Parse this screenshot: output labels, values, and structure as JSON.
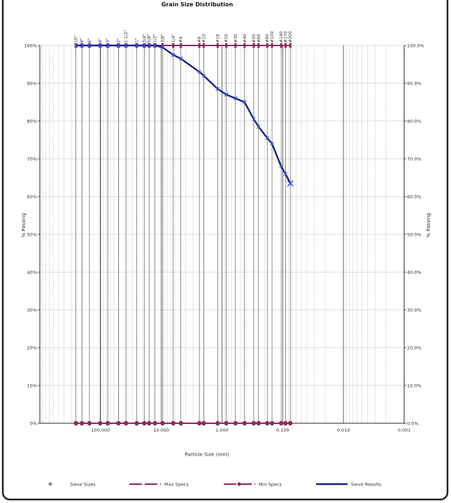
{
  "chart_data": {
    "type": "line",
    "title": "Grain Size Distribution",
    "xlabel": "Particle Size (mm)",
    "ylabel": "% Passing",
    "x_scale": "log",
    "x_reversed": true,
    "xlim": [
      1000,
      0.001
    ],
    "ylim": [
      0,
      100
    ],
    "x_ticks": [
      {
        "value": 100,
        "label": "100.000"
      },
      {
        "value": 10,
        "label": "10.000"
      },
      {
        "value": 1,
        "label": "1.000"
      },
      {
        "value": 0.1,
        "label": "0.100"
      },
      {
        "value": 0.01,
        "label": "0.010"
      },
      {
        "value": 0.001,
        "label": "0.001"
      }
    ],
    "y_ticks_left": [
      "0%",
      "10%",
      "20%",
      "30%",
      "40%",
      "50%",
      "60%",
      "70%",
      "80%",
      "90%",
      "100%"
    ],
    "y_ticks_right": [
      "0.0%",
      "10.0%",
      "20.0%",
      "30.0%",
      "40.0%",
      "50.0%",
      "60.0%",
      "70.0%",
      "80.0%",
      "90.0%",
      "100.0%"
    ],
    "sieve_sizes": [
      {
        "label": "10\"",
        "mm": 254
      },
      {
        "label": "8\"",
        "mm": 203.2
      },
      {
        "label": "6\"",
        "mm": 152.4
      },
      {
        "label": "4\"",
        "mm": 101.6
      },
      {
        "label": "3\"",
        "mm": 76.2
      },
      {
        "label": "2\"",
        "mm": 50.8
      },
      {
        "label": "1 1/2\"",
        "mm": 38.1
      },
      {
        "label": "1\"",
        "mm": 25.4
      },
      {
        "label": "3/4\"",
        "mm": 19.05
      },
      {
        "label": "5/8\"",
        "mm": 15.875
      },
      {
        "label": "1/2\"",
        "mm": 12.7
      },
      {
        "label": "3/8\"",
        "mm": 9.525
      },
      {
        "label": "1/4\"",
        "mm": 6.35
      },
      {
        "label": "#4",
        "mm": 4.75
      },
      {
        "label": "#8",
        "mm": 2.36
      },
      {
        "label": "#10",
        "mm": 2.0
      },
      {
        "label": "#16",
        "mm": 1.18
      },
      {
        "label": "#20",
        "mm": 0.85
      },
      {
        "label": "#30",
        "mm": 0.6
      },
      {
        "label": "#40",
        "mm": 0.425
      },
      {
        "label": "#50",
        "mm": 0.3
      },
      {
        "label": "#60",
        "mm": 0.25
      },
      {
        "label": "#80",
        "mm": 0.18
      },
      {
        "label": "#100",
        "mm": 0.15
      },
      {
        "label": "#140",
        "mm": 0.106
      },
      {
        "label": "#170",
        "mm": 0.09
      },
      {
        "label": "#200",
        "mm": 0.075
      }
    ],
    "series": [
      {
        "name": "Sieve Results",
        "color": "#1a1f7a",
        "x": [
          254,
          203.2,
          152.4,
          101.6,
          76.2,
          50.8,
          38.1,
          25.4,
          19.05,
          15.875,
          12.7,
          9.525,
          6.35,
          4.75,
          2.36,
          2.0,
          1.18,
          0.85,
          0.6,
          0.425,
          0.3,
          0.25,
          0.18,
          0.15,
          0.106,
          0.09,
          0.075
        ],
        "y": [
          100,
          100,
          100,
          100,
          100,
          100,
          100,
          100,
          100,
          100,
          100,
          99.5,
          97.5,
          96.5,
          93,
          92,
          88.5,
          87,
          86,
          85,
          80.5,
          78.5,
          75.5,
          74,
          68,
          66,
          63.5
        ]
      },
      {
        "name": "Max Specs",
        "color": "#8b2a5c",
        "x": [
          254,
          203.2,
          152.4,
          101.6,
          76.2,
          50.8,
          38.1,
          25.4,
          19.05,
          15.875,
          12.7,
          9.525,
          6.35,
          4.75,
          2.36,
          2.0,
          1.18,
          0.85,
          0.6,
          0.425,
          0.3,
          0.25,
          0.18,
          0.15,
          0.106,
          0.09,
          0.075
        ],
        "y": [
          100,
          100,
          100,
          100,
          100,
          100,
          100,
          100,
          100,
          100,
          100,
          100,
          100,
          100,
          100,
          100,
          100,
          100,
          100,
          100,
          100,
          100,
          100,
          100,
          100,
          100,
          100
        ]
      },
      {
        "name": "Min Specs",
        "color": "#8b2a5c",
        "x": [
          254,
          203.2,
          152.4,
          101.6,
          76.2,
          50.8,
          38.1,
          25.4,
          19.05,
          15.875,
          12.7,
          9.525,
          6.35,
          4.75,
          2.36,
          2.0,
          1.18,
          0.85,
          0.6,
          0.425,
          0.3,
          0.25,
          0.18,
          0.15,
          0.106,
          0.09,
          0.075
        ],
        "y": [
          0,
          0,
          0,
          0,
          0,
          0,
          0,
          0,
          0,
          0,
          0,
          0,
          0,
          0,
          0,
          0,
          0,
          0,
          0,
          0,
          0,
          0,
          0,
          0,
          0,
          0,
          0
        ]
      }
    ],
    "legend": {
      "position": "bottom",
      "items": [
        {
          "label": "Sieve Sizes",
          "symbol": "+"
        },
        {
          "label": "Max Specs",
          "symbol": "dash"
        },
        {
          "label": "Min Specs",
          "symbol": "dash-dot"
        },
        {
          "label": "Sieve Results",
          "symbol": "line-star"
        }
      ]
    },
    "grid": true
  }
}
